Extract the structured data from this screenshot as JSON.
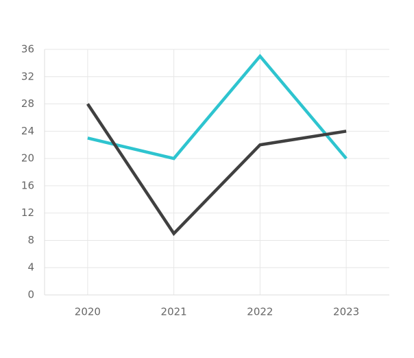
{
  "chart_data": {
    "type": "line",
    "categories": [
      "2020",
      "2021",
      "2022",
      "2023"
    ],
    "series": [
      {
        "color": "#2ec4cf",
        "values": [
          23,
          20,
          35,
          20
        ]
      },
      {
        "color": "#404040",
        "values": [
          28,
          9,
          22,
          24
        ]
      }
    ],
    "ylim": [
      0,
      36
    ],
    "yticks": [
      0,
      4,
      8,
      12,
      16,
      20,
      24,
      28,
      32,
      36
    ],
    "grid": true
  }
}
